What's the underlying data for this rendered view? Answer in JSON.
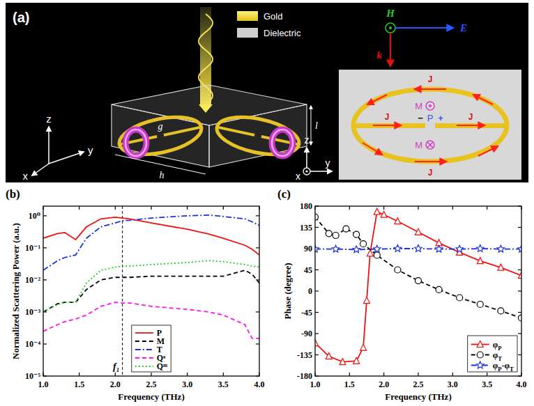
{
  "diagram": {
    "panel": "(a)",
    "materials": [
      "Gold",
      "Dielectric"
    ],
    "field": {
      "H": "H",
      "E": "E",
      "k": "k"
    },
    "dimensions": [
      "g",
      "h",
      "l"
    ],
    "axes_3d": {
      "x": "x",
      "y": "y",
      "z": "z"
    },
    "cross_section": {
      "J": [
        "J",
        "J",
        "J",
        "J"
      ],
      "M": [
        "M",
        "M"
      ],
      "P": "P",
      "charges": [
        "−",
        "+"
      ],
      "axes": {
        "z": "z",
        "y": "y",
        "x": "x"
      }
    }
  },
  "chart_data": [
    {
      "type": "line",
      "panel": "(b)",
      "x_label": "Frequency (THz)",
      "y_label": "Normalized Scattering Power (a.u.)",
      "log": "y",
      "grid": false,
      "legend": "lower center",
      "xlim": [
        1,
        4
      ],
      "ylim": [
        1e-05,
        2
      ],
      "xticks": [
        {
          "value": 1,
          "label": "1.0"
        },
        {
          "value": 1.5,
          "label": "1.5"
        },
        {
          "value": 2,
          "label": "2.0"
        },
        {
          "value": 2.5,
          "label": "2.5"
        },
        {
          "value": 3,
          "label": "3.0"
        },
        {
          "value": 3.5,
          "label": "3.5"
        },
        {
          "value": 4,
          "label": "4.0"
        }
      ],
      "yticks": [
        {
          "value": 1e-05,
          "label": "10⁻⁵"
        },
        {
          "value": 0.0001,
          "label": "10⁻⁴"
        },
        {
          "value": 0.001,
          "label": "10⁻³"
        },
        {
          "value": 0.01,
          "label": "10⁻²"
        },
        {
          "value": 0.1,
          "label": "10⁻¹"
        },
        {
          "value": 1,
          "label": "10⁰"
        }
      ],
      "x": [
        1.0,
        1.2,
        1.3,
        1.45,
        1.6,
        1.8,
        2.0,
        2.1,
        2.2,
        2.5,
        3.0,
        3.3,
        3.5,
        3.8,
        3.9,
        4.0
      ],
      "series": [
        {
          "name": "P",
          "color": "#ee1111",
          "line_style": "solid",
          "marker": "none",
          "values": [
            0.2,
            0.28,
            0.3,
            0.18,
            0.45,
            0.8,
            0.9,
            0.85,
            0.8,
            0.6,
            0.38,
            0.27,
            0.2,
            0.12,
            0.09,
            0.06
          ]
        },
        {
          "name": "M",
          "color": "#000000",
          "line_style": "dashed",
          "marker": "none",
          "values": [
            0.001,
            0.0018,
            0.002,
            0.002,
            0.005,
            0.01,
            0.012,
            0.012,
            0.012,
            0.013,
            0.013,
            0.013,
            0.013,
            0.02,
            0.015,
            0.008
          ]
        },
        {
          "name": "T",
          "color": "#1a2fe0",
          "line_style": "dashdot",
          "marker": "none",
          "values": [
            0.02,
            0.04,
            0.05,
            0.06,
            0.2,
            0.45,
            0.6,
            0.7,
            0.72,
            0.85,
            1.0,
            1.05,
            0.95,
            0.8,
            0.65,
            0.5
          ]
        },
        {
          "name": "Qᵉ",
          "color": "#ff11ee",
          "line_style": "dashed",
          "marker": "none",
          "values": [
            0.00025,
            0.0004,
            0.0005,
            0.0006,
            0.0008,
            0.0015,
            0.002,
            0.0019,
            0.0019,
            0.0015,
            0.0012,
            0.001,
            0.0008,
            0.0004,
            0.00015,
            0.00015
          ]
        },
        {
          "name": "Qᵐ",
          "color": "#22cc22",
          "line_style": "dotted",
          "marker": "none",
          "values": [
            0.001,
            0.0017,
            0.002,
            0.002,
            0.008,
            0.02,
            0.025,
            0.027,
            0.027,
            0.03,
            0.035,
            0.04,
            0.037,
            0.03,
            0.027,
            0.025
          ]
        }
      ],
      "annotations": [
        {
          "text": "f₁",
          "x": 2.1
        }
      ]
    },
    {
      "type": "line",
      "panel": "(c)",
      "x_label": "Frequency (THz)",
      "y_label": "Phase (degree)",
      "grid": false,
      "legend": "lower right",
      "xlim": [
        1,
        4
      ],
      "ylim": [
        -180,
        180
      ],
      "xticks": [
        {
          "value": 1,
          "label": "1.0"
        },
        {
          "value": 1.5,
          "label": "1.5"
        },
        {
          "value": 2,
          "label": "2.0"
        },
        {
          "value": 2.5,
          "label": "2.5"
        },
        {
          "value": 3,
          "label": "3.0"
        },
        {
          "value": 3.5,
          "label": "3.5"
        },
        {
          "value": 4,
          "label": "4.0"
        }
      ],
      "yticks": [
        -180,
        -135,
        -90,
        -45,
        0,
        45,
        90,
        135,
        180
      ],
      "series": [
        {
          "name": "φP",
          "color": "#ee1111",
          "line_style": "solid",
          "marker": "triangle",
          "x": [
            1.0,
            1.2,
            1.4,
            1.6,
            1.7,
            1.75,
            1.8,
            1.9,
            2.0,
            2.2,
            2.5,
            2.8,
            3.1,
            3.4,
            3.7,
            4.0
          ],
          "values": [
            -110,
            -138,
            -150,
            -148,
            -120,
            -20,
            80,
            168,
            162,
            148,
            125,
            102,
            82,
            64,
            50,
            33
          ]
        },
        {
          "name": "φT",
          "color": "#000000",
          "line_style": "dashed",
          "marker": "circle",
          "x": [
            1.0,
            1.2,
            1.3,
            1.45,
            1.6,
            1.7,
            1.9,
            2.2,
            2.5,
            2.8,
            3.1,
            3.4,
            3.7,
            4.0
          ],
          "values": [
            157,
            122,
            118,
            132,
            120,
            100,
            76,
            45,
            22,
            3,
            -14,
            -28,
            -42,
            -57
          ]
        },
        {
          "name": "φP-φT",
          "color": "#1a2fe0",
          "line_style": "dashdot",
          "marker": "star",
          "x": [
            1.0,
            1.3,
            1.6,
            1.9,
            2.2,
            2.5,
            2.8,
            3.1,
            3.4,
            3.7,
            4.0
          ],
          "values": [
            89,
            89,
            88,
            89,
            90,
            90,
            89,
            89,
            90,
            89,
            89
          ]
        }
      ]
    }
  ]
}
